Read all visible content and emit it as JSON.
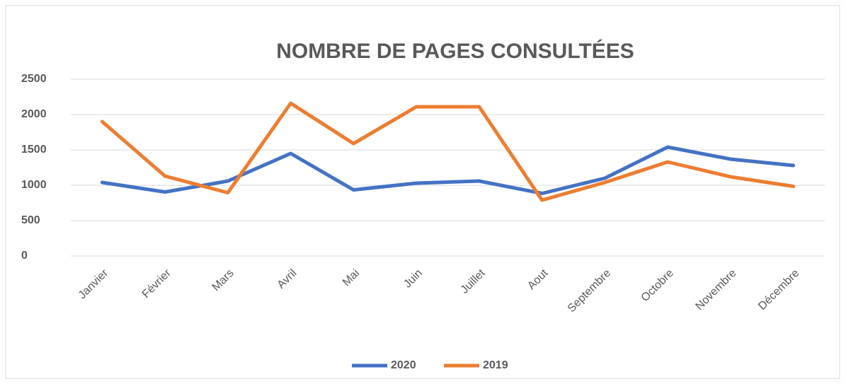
{
  "chart_data": {
    "type": "line",
    "title": "NOMBRE DE PAGES CONSULTÉES",
    "categories": [
      "Janvier",
      "Février",
      "Mars",
      "Avril",
      "Mai",
      "Juin",
      "Juillet",
      "Aout",
      "Septembre",
      "Octobre",
      "Novembre",
      "Décembre"
    ],
    "series": [
      {
        "name": "2020",
        "color": "#4472c4",
        "values": [
          1040,
          905,
          1060,
          1450,
          935,
          1030,
          1060,
          885,
          1100,
          1540,
          1370,
          1280
        ]
      },
      {
        "name": "2019",
        "color": "#ed7d31",
        "values": [
          1900,
          1130,
          895,
          2160,
          1590,
          2110,
          2110,
          790,
          1040,
          1330,
          1120,
          985
        ]
      }
    ],
    "ylim": [
      0,
      2500
    ],
    "yticks": [
      0,
      500,
      1000,
      1500,
      2000,
      2500
    ],
    "grid": true,
    "legend": "bottom"
  }
}
